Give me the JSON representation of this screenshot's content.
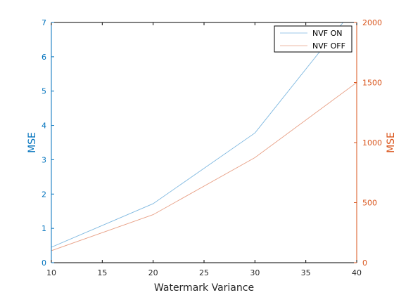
{
  "chart_data": {
    "type": "line",
    "xlabel": "Watermark Variance",
    "ylabel_left": "MSE",
    "ylabel_right": "MSE",
    "xlim": [
      10,
      40
    ],
    "ylim_left": [
      0,
      7
    ],
    "ylim_right": [
      0,
      2000
    ],
    "x_ticks": [
      "10",
      "15",
      "20",
      "25",
      "30",
      "35",
      "40"
    ],
    "y_left_ticks": [
      "0",
      "1",
      "2",
      "3",
      "4",
      "5",
      "6",
      "7"
    ],
    "y_right_ticks": [
      "0",
      "500",
      "1000",
      "1500",
      "2000"
    ],
    "grid": false,
    "legend_position": "top-right",
    "series": [
      {
        "name": "NVF ON",
        "axis": "left",
        "color": "#7eb8e0",
        "x": [
          10,
          20,
          30,
          40
        ],
        "y": [
          0.45,
          1.72,
          3.78,
          7.5
        ]
      },
      {
        "name": "NVF OFF",
        "axis": "right",
        "color": "#e8a086",
        "x": [
          10,
          20,
          30,
          40
        ],
        "y": [
          100,
          400,
          875,
          1500
        ]
      }
    ],
    "colors": {
      "left_axis": "#0072bd",
      "right_axis": "#d95319",
      "axes_box": "#000000"
    }
  }
}
